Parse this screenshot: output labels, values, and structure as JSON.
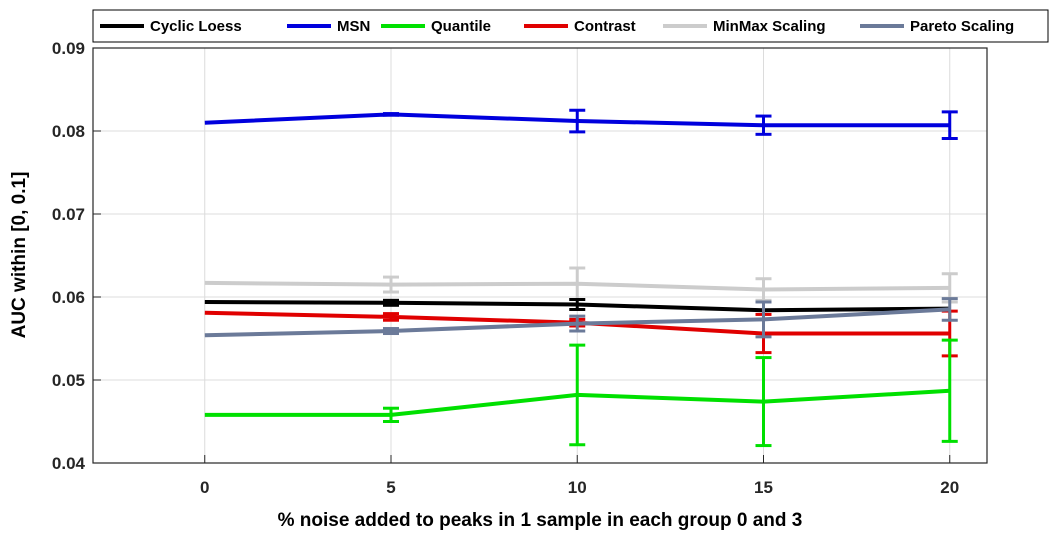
{
  "chart_data": {
    "type": "line",
    "xlabel": "% noise added to peaks in 1 sample in each group 0 and 3",
    "ylabel": "AUC within [0, 0.1]",
    "xlim": [
      -3,
      21
    ],
    "ylim": [
      0.04,
      0.09
    ],
    "x": [
      0,
      5,
      10,
      15,
      20
    ],
    "x_ticks": [
      "0",
      "5",
      "10",
      "15",
      "20"
    ],
    "y_ticks": [
      "0.04",
      "0.05",
      "0.06",
      "0.07",
      "0.08",
      "0.09"
    ],
    "grid": true,
    "legend_position": "top",
    "series": [
      {
        "name": "Cyclic Loess",
        "color": "#000000",
        "values": [
          0.0594,
          0.0593,
          0.0591,
          0.0584,
          0.0586
        ],
        "errors": [
          0.0,
          0.0003,
          0.0006,
          0.0,
          0.0
        ]
      },
      {
        "name": "MSN",
        "color": "#0000dd",
        "values": [
          0.081,
          0.082,
          0.0812,
          0.0807,
          0.0807
        ],
        "errors": [
          0.0,
          0.0001,
          0.0013,
          0.0011,
          0.0016
        ]
      },
      {
        "name": "Quantile",
        "color": "#00e000",
        "values": [
          0.0458,
          0.0458,
          0.0482,
          0.0474,
          0.0487
        ],
        "errors": [
          0.0,
          0.0008,
          0.006,
          0.0053,
          0.0061
        ]
      },
      {
        "name": "Contrast",
        "color": "#e00000",
        "values": [
          0.0581,
          0.0576,
          0.0569,
          0.0556,
          0.0556
        ],
        "errors": [
          0.0,
          0.0004,
          0.0004,
          0.0023,
          0.0027
        ]
      },
      {
        "name": "MinMax Scaling",
        "color": "#cccccc",
        "values": [
          0.0617,
          0.0615,
          0.0616,
          0.0609,
          0.0611
        ],
        "errors": [
          0.0,
          0.0009,
          0.0019,
          0.0013,
          0.0017
        ]
      },
      {
        "name": "Pareto Scaling",
        "color": "#6b7a99",
        "values": [
          0.0554,
          0.0559,
          0.0568,
          0.0573,
          0.0585
        ],
        "errors": [
          0.0,
          0.0003,
          0.0009,
          0.0021,
          0.0013
        ]
      }
    ]
  }
}
